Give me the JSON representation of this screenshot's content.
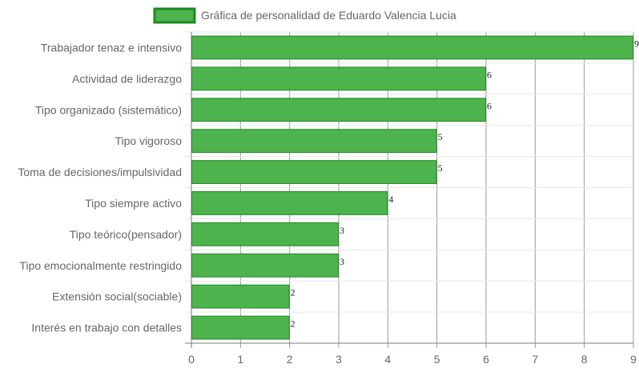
{
  "chart_data": {
    "type": "bar",
    "orientation": "horizontal",
    "title": "",
    "xlabel": "",
    "ylabel": "",
    "legend": {
      "placement": "top-center",
      "entries": [
        "Gráfica de personalidad de Eduardo Valencia Lucia"
      ]
    },
    "categories": [
      "Trabajador tenaz e intensivo",
      "Actividad de liderazgo",
      "Tipo organizado (sistemático)",
      "Tipo vigoroso",
      "Toma de decisiones/impulsividad",
      "Tipo siempre activo",
      "Tipo teórico(pensador)",
      "Tipo emocionalmente restringido",
      "Extensión social(sociable)",
      "Interés en trabajo con detalles"
    ],
    "series": [
      {
        "name": "Gráfica de personalidad de Eduardo Valencia Lucia",
        "values": [
          9,
          6,
          6,
          5,
          5,
          4,
          3,
          3,
          2,
          2
        ],
        "color": "#4db34d",
        "border_color": "#1f8a1f"
      }
    ],
    "xlim": [
      0,
      9
    ],
    "ticks": [
      0,
      1,
      2,
      3,
      4,
      5,
      6,
      7,
      8,
      9
    ],
    "grid": true,
    "data_labels": true
  }
}
